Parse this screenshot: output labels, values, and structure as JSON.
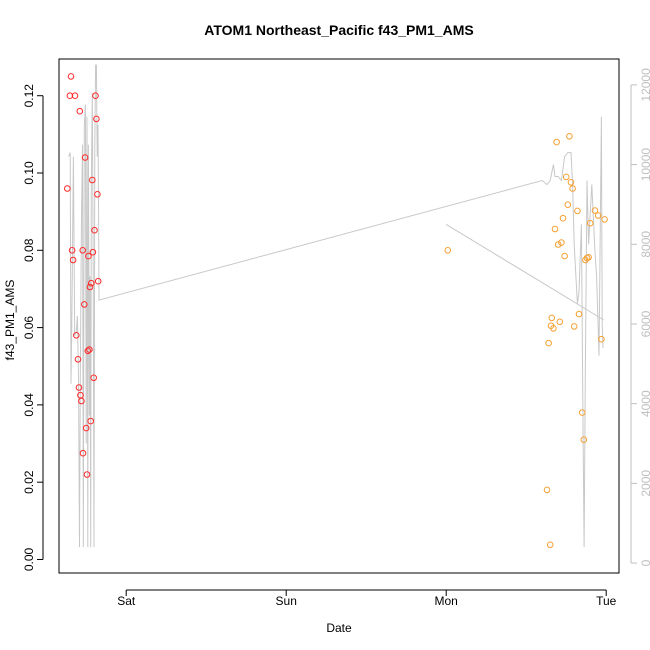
{
  "chart_data": {
    "type": "scatter",
    "title": "ATOM1 Northeast_Pacific f43_PM1_AMS",
    "xlabel": "Date",
    "ylabel": "f43_PM1_AMS",
    "x_tick_labels": [
      "Sat",
      "Sun",
      "Mon",
      "Tue"
    ],
    "x_tick_days": [
      0,
      1,
      2,
      3
    ],
    "xlim_days": [
      -0.42,
      3.08
    ],
    "ylim": [
      -0.0035,
      0.1295
    ],
    "y_ticks": [
      "0.00",
      "0.02",
      "0.04",
      "0.06",
      "0.08",
      "0.10",
      "0.12"
    ],
    "right_axis": {
      "ylim": [
        -250,
        12650
      ],
      "ticks": [
        "0",
        "2000",
        "4000",
        "6000",
        "8000",
        "10000",
        "12000"
      ],
      "color": "#bfbfbf"
    },
    "colors": {
      "series_a": "#ff2a2a",
      "series_b": "#f5a033",
      "line": "#c8c8c8",
      "axis": "#000000"
    },
    "series": [
      {
        "points": [
          [
            -0.368,
            0.096
          ],
          [
            -0.352,
            0.12
          ],
          [
            -0.345,
            0.125
          ],
          [
            -0.338,
            0.08
          ],
          [
            -0.332,
            0.0775
          ],
          [
            -0.32,
            0.12
          ],
          [
            -0.312,
            0.058
          ],
          [
            -0.301,
            0.0518
          ],
          [
            -0.295,
            0.0445
          ],
          [
            -0.29,
            0.116
          ],
          [
            -0.286,
            0.0425
          ],
          [
            -0.28,
            0.041
          ],
          [
            -0.272,
            0.08
          ],
          [
            -0.27,
            0.0275
          ],
          [
            -0.262,
            0.066
          ],
          [
            -0.257,
            0.104
          ],
          [
            -0.25,
            0.034
          ],
          [
            -0.245,
            0.022
          ],
          [
            -0.24,
            0.054
          ],
          [
            -0.236,
            0.0785
          ],
          [
            -0.23,
            0.0543
          ],
          [
            -0.226,
            0.0705
          ],
          [
            -0.222,
            0.0358
          ],
          [
            -0.218,
            0.0715
          ],
          [
            -0.212,
            0.0982
          ],
          [
            -0.208,
            0.0795
          ],
          [
            -0.203,
            0.047
          ],
          [
            -0.198,
            0.0852
          ],
          [
            -0.192,
            0.12
          ],
          [
            -0.186,
            0.114
          ],
          [
            -0.18,
            0.0945
          ],
          [
            -0.175,
            0.072
          ]
        ]
      },
      {
        "points": [
          [
            2.01,
            0.08
          ],
          [
            2.63,
            0.018
          ],
          [
            2.64,
            0.056
          ],
          [
            2.65,
            0.0038
          ],
          [
            2.655,
            0.0605
          ],
          [
            2.66,
            0.0625
          ],
          [
            2.67,
            0.0598
          ],
          [
            2.68,
            0.0855
          ],
          [
            2.69,
            0.108
          ],
          [
            2.7,
            0.0815
          ],
          [
            2.71,
            0.0615
          ],
          [
            2.72,
            0.082
          ],
          [
            2.73,
            0.0883
          ],
          [
            2.74,
            0.0785
          ],
          [
            2.75,
            0.099
          ],
          [
            2.76,
            0.0918
          ],
          [
            2.77,
            0.1095
          ],
          [
            2.78,
            0.0976
          ],
          [
            2.79,
            0.096
          ],
          [
            2.8,
            0.0603
          ],
          [
            2.82,
            0.0902
          ],
          [
            2.83,
            0.0635
          ],
          [
            2.85,
            0.038
          ],
          [
            2.86,
            0.031
          ],
          [
            2.87,
            0.0775
          ],
          [
            2.88,
            0.078
          ],
          [
            2.89,
            0.0782
          ],
          [
            2.9,
            0.087
          ],
          [
            2.93,
            0.0903
          ],
          [
            2.95,
            0.089
          ],
          [
            2.97,
            0.057
          ],
          [
            2.99,
            0.088
          ]
        ]
      },
      {
        "axis": "right",
        "points": [
          [
            -0.36,
            10200
          ],
          [
            -0.35,
            10300
          ],
          [
            -0.345,
            4500
          ],
          [
            -0.34,
            6000
          ],
          [
            -0.33,
            10200
          ],
          [
            -0.322,
            5700
          ],
          [
            -0.312,
            5800
          ],
          [
            -0.305,
            6200
          ],
          [
            -0.298,
            4700
          ],
          [
            -0.292,
            400
          ],
          [
            -0.286,
            5000
          ],
          [
            -0.28,
            8500
          ],
          [
            -0.273,
            10500
          ],
          [
            -0.268,
            400
          ],
          [
            -0.262,
            11000
          ],
          [
            -0.255,
            11500
          ],
          [
            -0.25,
            3000
          ],
          [
            -0.245,
            11200
          ],
          [
            -0.24,
            400
          ],
          [
            -0.236,
            10500
          ],
          [
            -0.23,
            3700
          ],
          [
            -0.226,
            7200
          ],
          [
            -0.222,
            400
          ],
          [
            -0.218,
            9500
          ],
          [
            -0.212,
            11800
          ],
          [
            -0.206,
            7500
          ],
          [
            -0.201,
            400
          ],
          [
            -0.196,
            10500
          ],
          [
            -0.191,
            12500
          ],
          [
            -0.186,
            12500
          ],
          [
            -0.181,
            10200
          ],
          [
            -0.176,
            11000
          ],
          [
            -0.172,
            8300
          ],
          [
            -0.17,
            6600
          ],
          [
            2.6,
            9600
          ],
          [
            2.63,
            9500
          ],
          [
            2.65,
            9600
          ],
          [
            2.67,
            10000
          ],
          [
            2.68,
            9700
          ],
          [
            2.7,
            9700
          ],
          [
            2.72,
            9600
          ],
          [
            2.74,
            10200
          ],
          [
            2.76,
            10300
          ],
          [
            2.78,
            10300
          ],
          [
            2.79,
            9500
          ],
          [
            2.8,
            8000
          ],
          [
            2.82,
            6500
          ],
          [
            2.83,
            6800
          ],
          [
            2.845,
            8500
          ],
          [
            2.855,
            3500
          ],
          [
            2.862,
            400
          ],
          [
            2.87,
            5000
          ],
          [
            2.88,
            9600
          ],
          [
            2.89,
            8000
          ],
          [
            2.91,
            9500
          ],
          [
            2.93,
            7800
          ],
          [
            2.94,
            7200
          ],
          [
            2.955,
            5200
          ],
          [
            2.97,
            11200
          ],
          [
            2.975,
            6000
          ],
          [
            2.98,
            5400
          ]
        ]
      },
      {
        "axis": "right",
        "points": [
          [
            2.0,
            8500
          ],
          [
            2.985,
            6100
          ]
        ]
      }
    ]
  }
}
